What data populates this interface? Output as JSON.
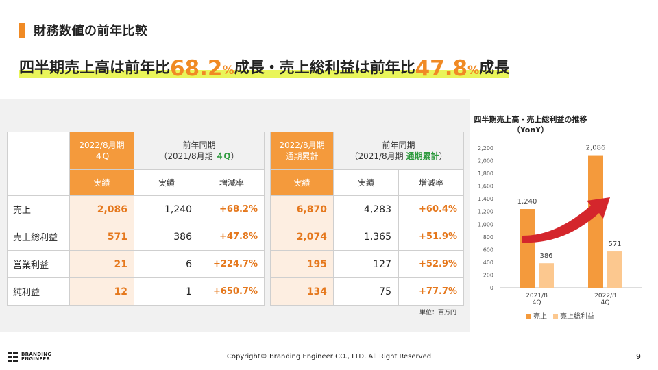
{
  "section_title": "財務数値の前年比較",
  "headline": {
    "part1": "四半期売上高は前年比",
    "value1": "68.2",
    "pct1": "%",
    "part2": "成長・売上総利益は前年比",
    "value2": "47.8",
    "pct2": "%",
    "part3": "成長"
  },
  "table_quarter": {
    "head_current": [
      "2022/8月期",
      "４Q"
    ],
    "head_prev_line1": "前年同期",
    "head_prev_line2_prefix": "（2021/8月期 ",
    "head_prev_line2_link": "４Q",
    "head_prev_line2_suffix": "）",
    "sub_current": "実績",
    "sub_prev": "実績",
    "sub_rate": "増減率",
    "rows": [
      {
        "label": "売上",
        "current": "2,086",
        "prev": "1,240",
        "rate": "+68.2%"
      },
      {
        "label": "売上総利益",
        "current": "571",
        "prev": "386",
        "rate": "+47.8%"
      },
      {
        "label": "営業利益",
        "current": "21",
        "prev": "6",
        "rate": "+224.7%"
      },
      {
        "label": "純利益",
        "current": "12",
        "prev": "1",
        "rate": "+650.7%"
      }
    ]
  },
  "table_annual": {
    "head_current": [
      "2022/8月期",
      "通期累計"
    ],
    "head_prev_line1": "前年同期",
    "head_prev_line2_prefix": "（2021/8月期 ",
    "head_prev_line2_link": "通期累計",
    "head_prev_line2_suffix": "）",
    "sub_current": "実績",
    "sub_prev": "実績",
    "sub_rate": "増減率",
    "rows": [
      {
        "current": "6,870",
        "prev": "4,283",
        "rate": "+60.4%"
      },
      {
        "current": "2,074",
        "prev": "1,365",
        "rate": "+51.9%"
      },
      {
        "current": "195",
        "prev": "127",
        "rate": "+52.9%"
      },
      {
        "current": "134",
        "prev": "75",
        "rate": "+77.7%"
      }
    ]
  },
  "unit_note": "単位：百万円",
  "colors": {
    "accent": "#f08a24",
    "bar_sales": "#f49a3c",
    "bar_gross": "#fcc88f",
    "highlight": "#e9f55a",
    "arrow": "#d4262c",
    "green": "#2e9a3e"
  },
  "chart_data": {
    "type": "bar",
    "title": [
      "四半期売上高・売上総利益の推移",
      "（YonY）"
    ],
    "categories": [
      [
        "2021/8",
        "4Q"
      ],
      [
        "2022/8",
        "4Q"
      ]
    ],
    "series": [
      {
        "name": "売上",
        "values": [
          1240,
          2086
        ],
        "labels": [
          "1,240",
          "2,086"
        ]
      },
      {
        "name": "売上総利益",
        "values": [
          386,
          571
        ],
        "labels": [
          "386",
          "571"
        ]
      }
    ],
    "ylim": [
      0,
      2200
    ],
    "yticks": [
      "0",
      "200",
      "400",
      "600",
      "800",
      "1,000",
      "1,200",
      "1,400",
      "1,600",
      "1,800",
      "2,000",
      "2,200"
    ],
    "ytick_values": [
      0,
      200,
      400,
      600,
      800,
      1000,
      1200,
      1400,
      1600,
      1800,
      2000,
      2200
    ],
    "xlabel": "",
    "ylabel": "",
    "grid": false,
    "legend": "bottom",
    "annotation": "red-arrow-up"
  },
  "footer": {
    "logo_line1": "BRANDING",
    "logo_line2": "ENGINEER",
    "copyright": "Copyright© Branding Engineer CO., LTD. All Right Reserved",
    "page_number": "9"
  }
}
